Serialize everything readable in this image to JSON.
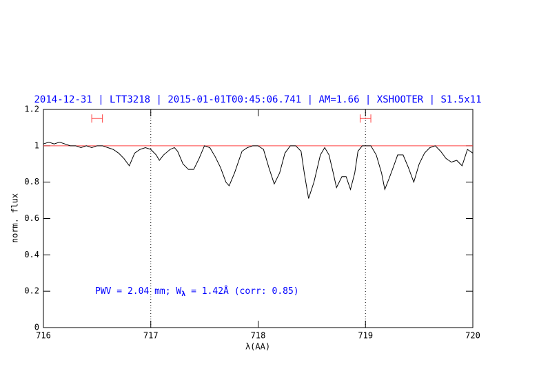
{
  "chart_data": {
    "type": "line",
    "title": "2014-12-31 | LTT3218 | 2015-01-01T00:45:06.741 | AM=1.66 | XSHOOTER | S1.5x11",
    "xlabel": "λ(AA)",
    "ylabel": "norm. flux",
    "annotation": {
      "parts": [
        "PWV = 2.04 mm; W",
        "λ",
        " = 1.42Å (corr: 0.85)"
      ],
      "color": "#0000ff"
    },
    "xlim": [
      716,
      720
    ],
    "ylim": [
      0,
      1.2
    ],
    "xticks": [
      716,
      717,
      718,
      719,
      720
    ],
    "yticks": [
      0,
      0.2,
      0.4,
      0.6,
      0.8,
      1,
      1.2
    ],
    "hline": {
      "y": 1,
      "color": "#ff4040"
    },
    "vlines": [
      717,
      719
    ],
    "ranges": [
      {
        "x": [
          716.45,
          716.55
        ],
        "y": 1.15
      },
      {
        "x": [
          718.95,
          719.05
        ],
        "y": 1.15
      }
    ],
    "range_color": "#ff4040",
    "series": [
      {
        "color": "#000000",
        "x": [
          716.0,
          716.05,
          716.1,
          716.15,
          716.2,
          716.25,
          716.3,
          716.35,
          716.4,
          716.45,
          716.5,
          716.55,
          716.6,
          716.65,
          716.7,
          716.75,
          716.8,
          716.85,
          716.9,
          716.95,
          717.0,
          717.05,
          717.08,
          717.12,
          717.18,
          717.22,
          717.25,
          717.3,
          717.35,
          717.4,
          717.45,
          717.5,
          717.55,
          717.6,
          717.65,
          717.7,
          717.73,
          717.78,
          717.85,
          717.9,
          717.95,
          718.0,
          718.05,
          718.1,
          718.15,
          718.2,
          718.25,
          718.3,
          718.35,
          718.4,
          718.43,
          718.47,
          718.52,
          718.58,
          718.62,
          718.66,
          718.7,
          718.73,
          718.78,
          718.82,
          718.86,
          718.9,
          718.93,
          718.97,
          719.0,
          719.05,
          719.1,
          719.15,
          719.18,
          719.22,
          719.27,
          719.3,
          719.35,
          719.4,
          719.45,
          719.5,
          719.55,
          719.6,
          719.65,
          719.7,
          719.75,
          719.8,
          719.85,
          719.9,
          719.95,
          720.0
        ],
        "values": [
          1.01,
          1.02,
          1.01,
          1.02,
          1.01,
          1.0,
          1.0,
          0.99,
          1.0,
          0.99,
          1.0,
          1.0,
          0.99,
          0.98,
          0.96,
          0.93,
          0.89,
          0.96,
          0.98,
          0.99,
          0.98,
          0.95,
          0.92,
          0.95,
          0.98,
          0.99,
          0.97,
          0.9,
          0.87,
          0.87,
          0.93,
          1.0,
          0.99,
          0.94,
          0.88,
          0.8,
          0.78,
          0.85,
          0.97,
          0.99,
          1.0,
          1.0,
          0.98,
          0.88,
          0.79,
          0.85,
          0.96,
          1.0,
          1.0,
          0.97,
          0.85,
          0.71,
          0.8,
          0.95,
          0.99,
          0.95,
          0.85,
          0.77,
          0.83,
          0.83,
          0.76,
          0.85,
          0.97,
          1.0,
          1.0,
          1.0,
          0.95,
          0.85,
          0.76,
          0.82,
          0.9,
          0.95,
          0.95,
          0.88,
          0.8,
          0.9,
          0.96,
          0.99,
          1.0,
          0.97,
          0.93,
          0.91,
          0.92,
          0.89,
          0.98,
          0.96
        ]
      }
    ]
  }
}
